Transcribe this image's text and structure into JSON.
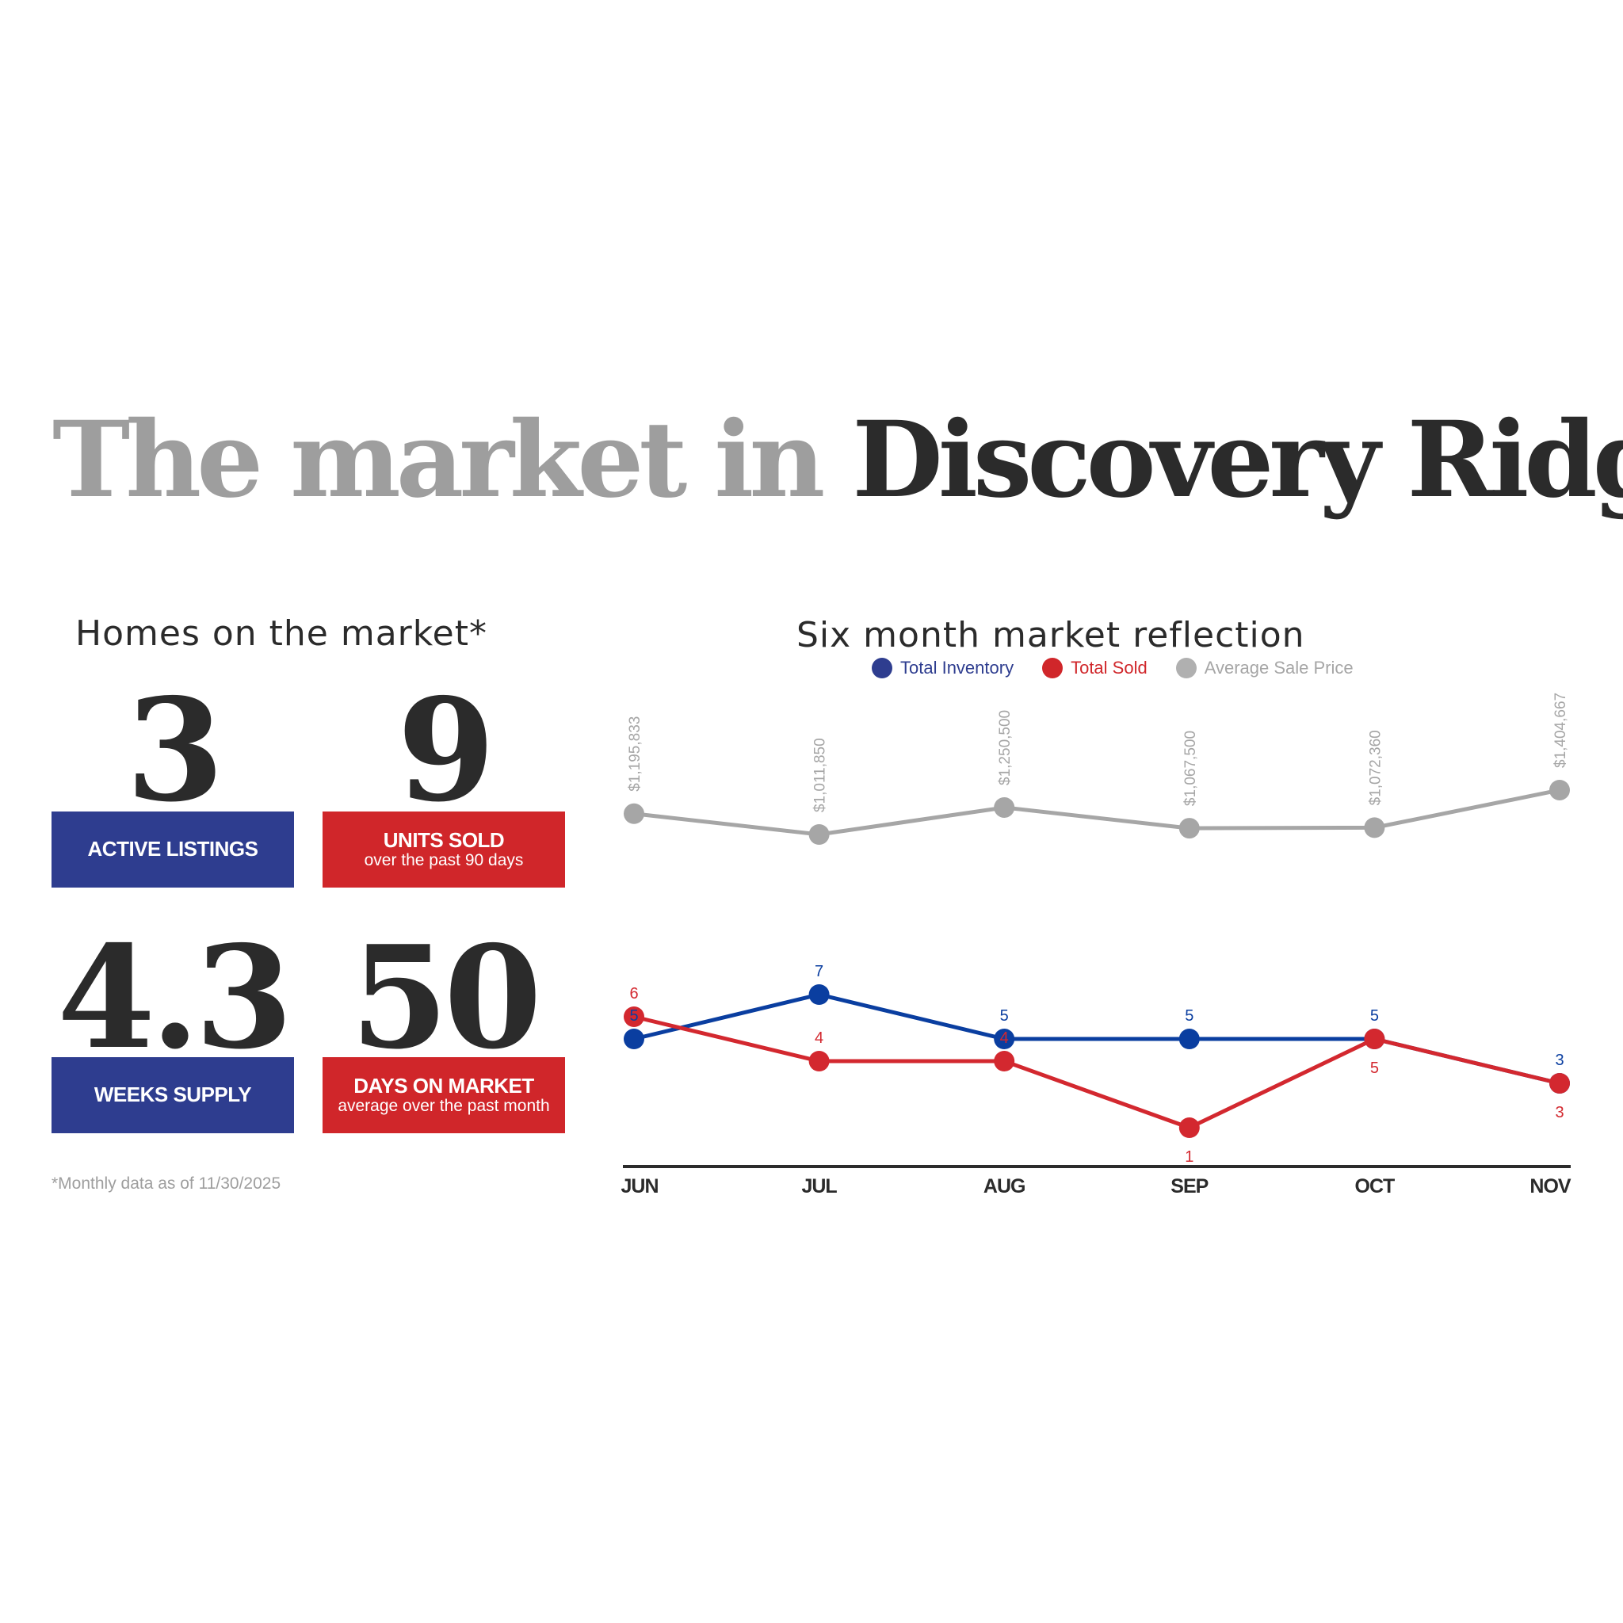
{
  "title": {
    "part1": "The market in",
    "part2": "Discovery Ridge"
  },
  "homes": {
    "heading": "Homes on the market*",
    "stats": [
      {
        "value": "3",
        "label": "ACTIVE LISTINGS",
        "sub": "",
        "color": "#2e3d8f"
      },
      {
        "value": "9",
        "label": "UNITS SOLD",
        "sub": "over the past 90 days",
        "color": "#d0262a"
      },
      {
        "value": "4.3",
        "label": "WEEKS SUPPLY",
        "sub": "",
        "color": "#2e3d8f"
      },
      {
        "value": "50",
        "label": "DAYS ON MARKET",
        "sub": "average over the past month",
        "color": "#d0262a"
      }
    ],
    "footnote": "*Monthly data as of 11/30/2025"
  },
  "chart_data": {
    "type": "line",
    "title": "Six month market reflection",
    "legend_placement": "top-center",
    "categories": [
      "JUN",
      "JUL",
      "AUG",
      "SEP",
      "OCT",
      "NOV"
    ],
    "series": [
      {
        "name": "Total Inventory",
        "color": "#0a3ea0",
        "values": [
          5,
          7,
          5,
          5,
          5,
          3
        ],
        "labels": [
          "5",
          "7",
          "5",
          "5",
          "5",
          "3"
        ],
        "label_side": [
          "above",
          "above",
          "above",
          "above",
          "above",
          "above"
        ]
      },
      {
        "name": "Total Sold",
        "color": "#d3282f",
        "values": [
          6,
          4,
          4,
          1,
          5,
          3
        ],
        "labels": [
          "6",
          "4",
          "4",
          "1",
          "5",
          "3"
        ],
        "label_side": [
          "above",
          "above",
          "above",
          "below",
          "below",
          "below"
        ]
      },
      {
        "name": "Average Sale Price",
        "color": "#a6a6a6",
        "values": [
          1195833,
          1011850,
          1250500,
          1067500,
          1072360,
          1404667
        ],
        "labels": [
          "$1,195,833",
          "$1,011,850",
          "$1,250,500",
          "$1,067,500",
          "$1,072,360",
          "$1,404,667"
        ]
      }
    ]
  }
}
